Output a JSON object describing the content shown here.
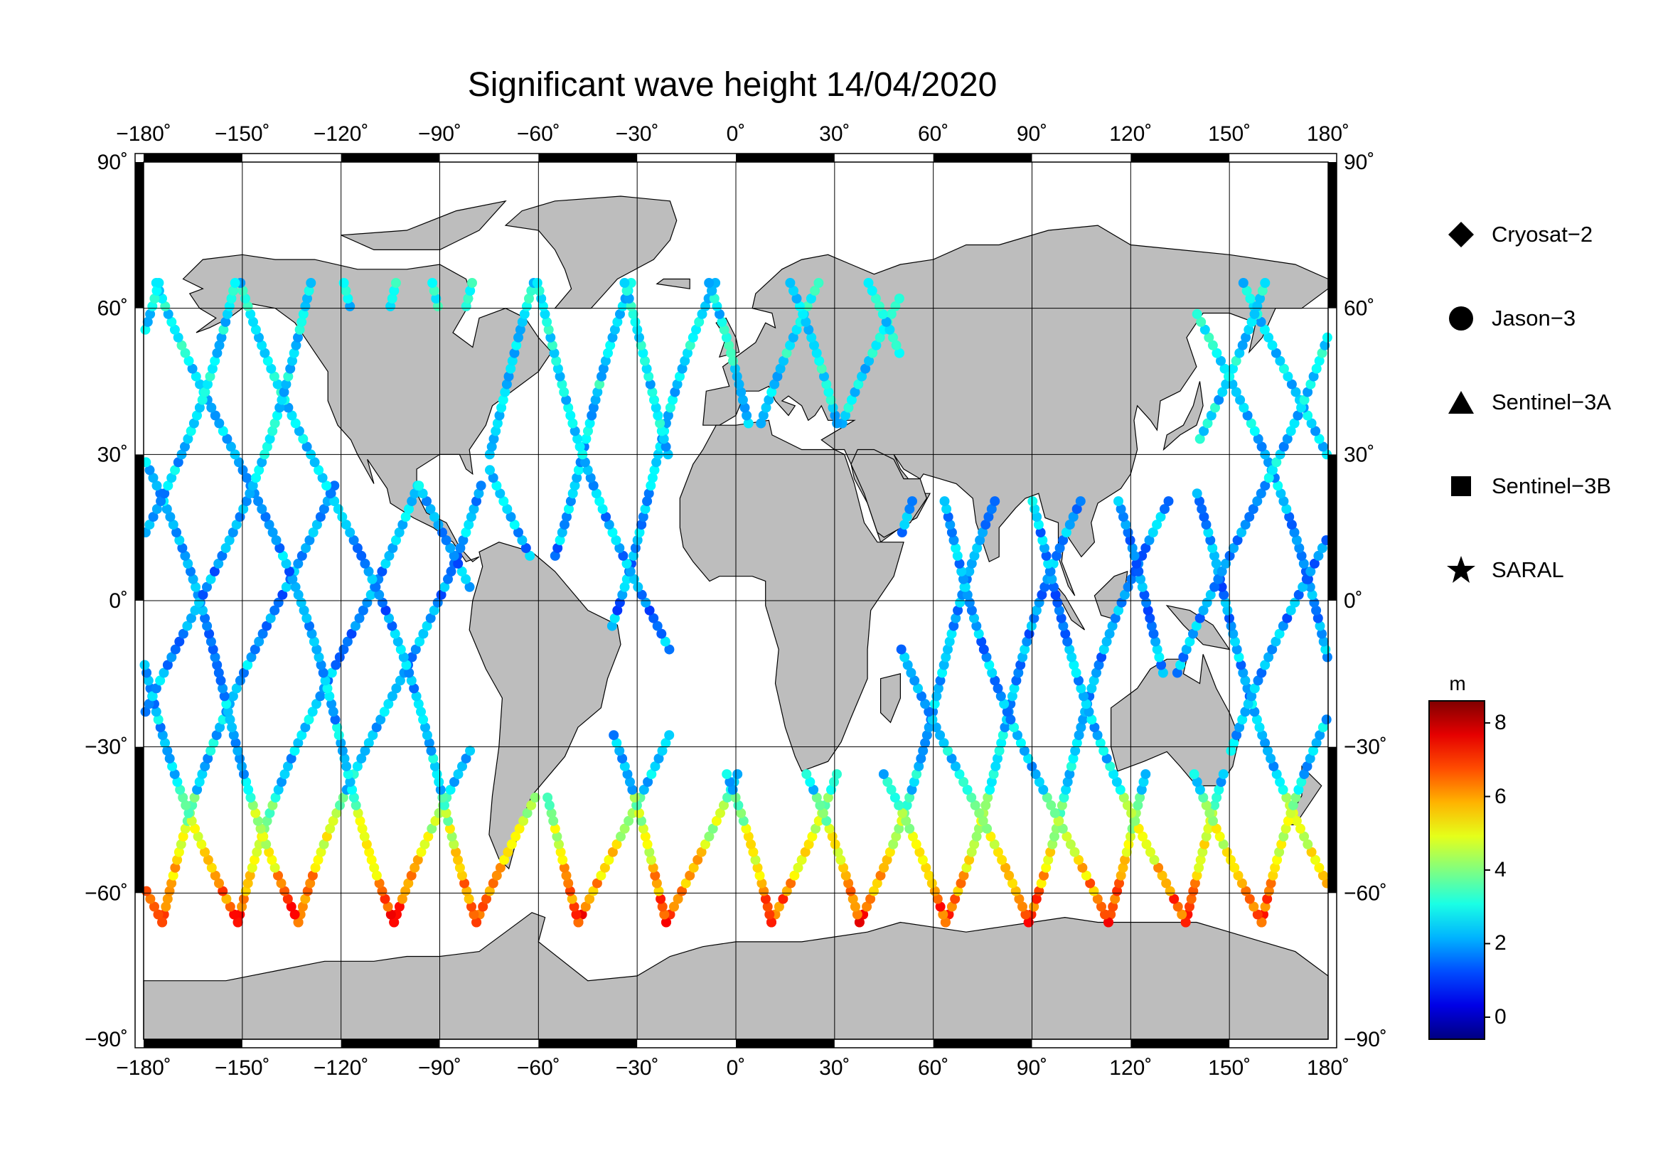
{
  "title": "Significant wave height 14/04/2020",
  "map": {
    "lon_ticks": [
      "−180˚",
      "−150˚",
      "−120˚",
      "−90˚",
      "−60˚",
      "−30˚",
      "0˚",
      "30˚",
      "60˚",
      "90˚",
      "120˚",
      "150˚",
      "180˚"
    ],
    "lat_ticks": [
      "90˚",
      "60˚",
      "30˚",
      "0˚",
      "−30˚",
      "−60˚",
      "−90˚"
    ],
    "lon_values": [
      -180,
      -150,
      -120,
      -90,
      -60,
      -30,
      0,
      30,
      60,
      90,
      120,
      150,
      180
    ],
    "lat_values": [
      90,
      60,
      30,
      0,
      -30,
      -60,
      -90
    ],
    "lon_range": [
      -180,
      180
    ],
    "lat_range": [
      -90,
      90
    ],
    "land_color": "#bdbdbd",
    "grid": true
  },
  "legend": {
    "items": [
      {
        "label": "Cryosat−2",
        "symbol": "diamond"
      },
      {
        "label": "Jason−3",
        "symbol": "circle"
      },
      {
        "label": "Sentinel−3A",
        "symbol": "triangle"
      },
      {
        "label": "Sentinel−3B",
        "symbol": "square"
      },
      {
        "label": "SARAL",
        "symbol": "star"
      }
    ]
  },
  "colorbar": {
    "unit": "m",
    "ticks": [
      "8",
      "6",
      "4",
      "2",
      "0"
    ],
    "tick_values": [
      8,
      6,
      4,
      2,
      0
    ],
    "range": [
      -0.6,
      8.6
    ],
    "colormap": "jet"
  }
}
